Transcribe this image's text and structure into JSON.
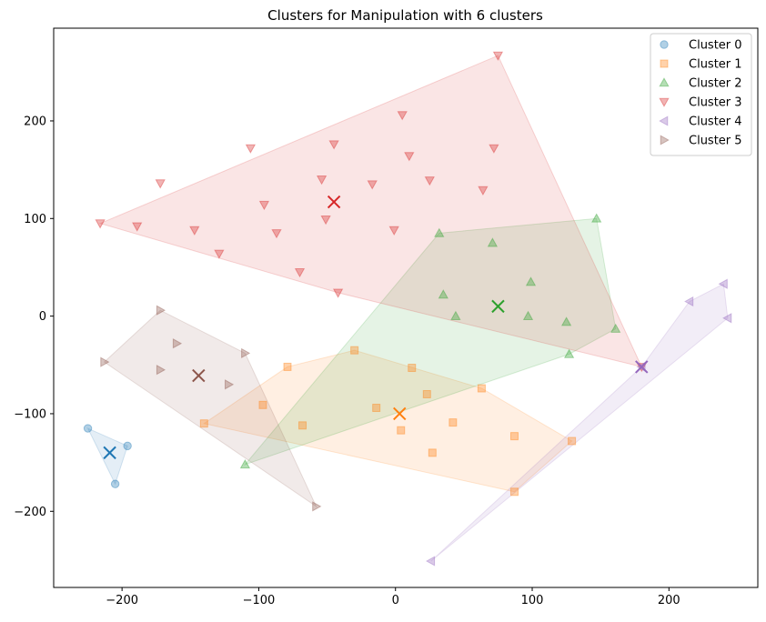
{
  "chart_data": {
    "type": "scatter",
    "title": "Clusters for Manipulation with 6 clusters",
    "xlabel": "",
    "ylabel": "",
    "xlim": [
      -250,
      265
    ],
    "ylim": [
      -278,
      295
    ],
    "xticks": [
      -200,
      -100,
      0,
      100,
      200
    ],
    "yticks": [
      -200,
      -100,
      0,
      100,
      200
    ],
    "grid": false,
    "legend_position": "top-right",
    "series": [
      {
        "name": "Cluster 0",
        "marker": "circle",
        "color": "#1f77b4",
        "points": [
          [
            -225,
            -115
          ],
          [
            -196,
            -133
          ],
          [
            -205,
            -172
          ]
        ],
        "hull": [
          [
            -225,
            -115
          ],
          [
            -196,
            -133
          ],
          [
            -205,
            -172
          ]
        ],
        "centroid": [
          -209,
          -140
        ]
      },
      {
        "name": "Cluster 1",
        "marker": "square",
        "color": "#ff7f0e",
        "points": [
          [
            -140,
            -110
          ],
          [
            -97,
            -91
          ],
          [
            -79,
            -52
          ],
          [
            -68,
            -112
          ],
          [
            -30,
            -35
          ],
          [
            -14,
            -94
          ],
          [
            4,
            -117
          ],
          [
            12,
            -53
          ],
          [
            23,
            -80
          ],
          [
            27,
            -140
          ],
          [
            42,
            -109
          ],
          [
            63,
            -74
          ],
          [
            87,
            -123
          ],
          [
            87,
            -180
          ],
          [
            129,
            -128
          ]
        ],
        "hull": [
          [
            -140,
            -110
          ],
          [
            -79,
            -52
          ],
          [
            -30,
            -35
          ],
          [
            63,
            -74
          ],
          [
            129,
            -128
          ],
          [
            87,
            -180
          ]
        ],
        "centroid": [
          3,
          -100
        ]
      },
      {
        "name": "Cluster 2",
        "marker": "triangle-up",
        "color": "#2ca02c",
        "points": [
          [
            -110,
            -152
          ],
          [
            32,
            85
          ],
          [
            35,
            22
          ],
          [
            44,
            0
          ],
          [
            71,
            75
          ],
          [
            99,
            35
          ],
          [
            97,
            0
          ],
          [
            125,
            -6
          ],
          [
            127,
            -39
          ],
          [
            147,
            100
          ],
          [
            161,
            -13
          ]
        ],
        "hull": [
          [
            -110,
            -152
          ],
          [
            32,
            85
          ],
          [
            147,
            100
          ],
          [
            161,
            -13
          ],
          [
            127,
            -39
          ]
        ],
        "centroid": [
          75,
          10
        ]
      },
      {
        "name": "Cluster 3",
        "marker": "triangle-down",
        "color": "#d62728",
        "points": [
          [
            -216,
            95
          ],
          [
            -189,
            92
          ],
          [
            -172,
            136
          ],
          [
            -147,
            88
          ],
          [
            -129,
            64
          ],
          [
            -106,
            172
          ],
          [
            -96,
            114
          ],
          [
            -87,
            85
          ],
          [
            -70,
            45
          ],
          [
            -54,
            140
          ],
          [
            -51,
            99
          ],
          [
            -45,
            176
          ],
          [
            -42,
            24
          ],
          [
            -17,
            135
          ],
          [
            -1,
            88
          ],
          [
            5,
            206
          ],
          [
            10,
            164
          ],
          [
            25,
            139
          ],
          [
            64,
            129
          ],
          [
            72,
            172
          ],
          [
            75,
            267
          ],
          [
            180,
            -52
          ]
        ],
        "hull": [
          [
            -216,
            95
          ],
          [
            75,
            267
          ],
          [
            180,
            -52
          ],
          [
            -42,
            24
          ]
        ],
        "centroid": [
          -45,
          117
        ]
      },
      {
        "name": "Cluster 4",
        "marker": "triangle-left",
        "color": "#9467bd",
        "points": [
          [
            26,
            -251
          ],
          [
            215,
            15
          ],
          [
            240,
            33
          ],
          [
            243,
            -2
          ],
          [
            180,
            -52
          ]
        ],
        "hull": [
          [
            26,
            -251
          ],
          [
            180,
            -52
          ],
          [
            215,
            15
          ],
          [
            240,
            33
          ],
          [
            243,
            -2
          ]
        ],
        "centroid": [
          180,
          -52
        ]
      },
      {
        "name": "Cluster 5",
        "marker": "triangle-right",
        "color": "#8c564b",
        "points": [
          [
            -213,
            -47
          ],
          [
            -172,
            6
          ],
          [
            -172,
            -55
          ],
          [
            -160,
            -28
          ],
          [
            -122,
            -70
          ],
          [
            -110,
            -38
          ],
          [
            -58,
            -195
          ]
        ],
        "hull": [
          [
            -213,
            -47
          ],
          [
            -172,
            6
          ],
          [
            -110,
            -38
          ],
          [
            -58,
            -195
          ]
        ],
        "centroid": [
          -144,
          -61
        ]
      }
    ]
  }
}
